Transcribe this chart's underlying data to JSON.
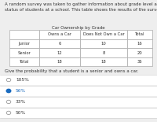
{
  "intro_text": "A random survey was taken to gather information about grade level and car ownership\nstatus of students at a school. This table shows the results of the survey.",
  "table_title": "Car Ownership by Grade",
  "col_headers": [
    "Owns a Car",
    "Does Not Own a Car",
    "Total"
  ],
  "row_labels": [
    "Junior",
    "Senior",
    "Total"
  ],
  "table_data": [
    [
      6,
      10,
      16
    ],
    [
      12,
      8,
      20
    ],
    [
      18,
      18,
      36
    ]
  ],
  "question": "Give the probability that a student is a senior and owns a car.",
  "options": [
    "105%",
    "56%",
    "33%",
    "50%"
  ],
  "selected_index": 1,
  "bg_color": "#eeeeee",
  "selected_color": "#1a6bbf",
  "unselected_color": "#999999",
  "text_color": "#333333",
  "table_bg": "#ffffff",
  "divider_color": "#cccccc",
  "intro_fontsize": 4.0,
  "table_title_fontsize": 4.0,
  "cell_fontsize": 3.8,
  "question_fontsize": 4.0,
  "option_fontsize": 4.2
}
